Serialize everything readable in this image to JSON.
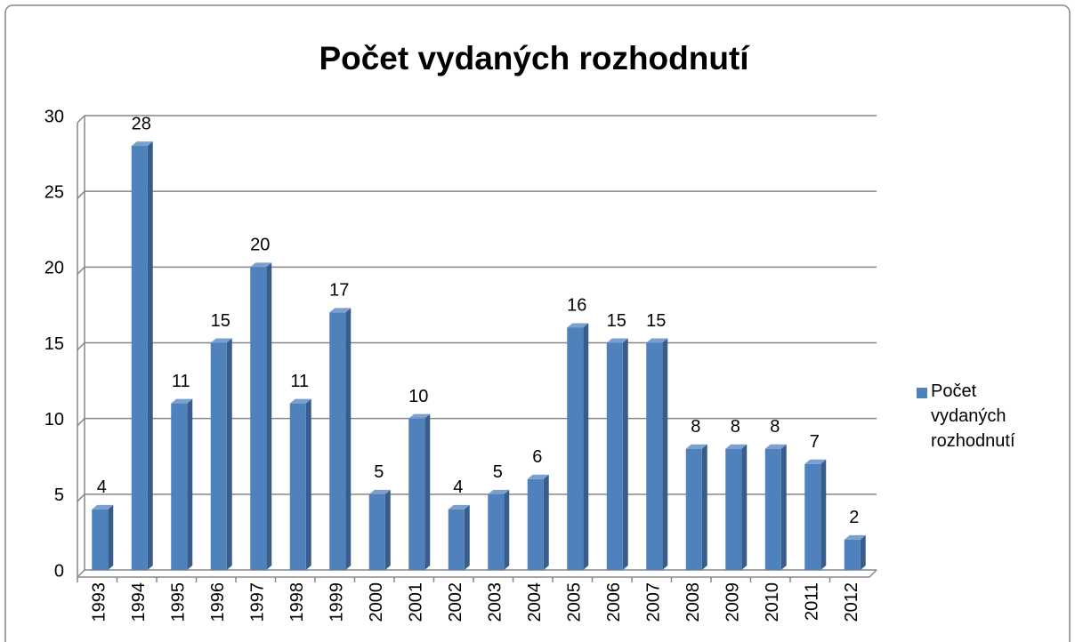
{
  "chart_data": {
    "type": "bar",
    "title": "Počet vydaných rozhodnutí",
    "categories": [
      "1993",
      "1994",
      "1995",
      "1996",
      "1997",
      "1998",
      "1999",
      "2000",
      "2001",
      "2002",
      "2003",
      "2004",
      "2005",
      "2006",
      "2007",
      "2008",
      "2009",
      "2010",
      "2011",
      "2012"
    ],
    "series": [
      {
        "name": "Počet vydaných rozhodnutí",
        "color": "#4f81bd",
        "values": [
          4,
          28,
          11,
          15,
          20,
          11,
          17,
          5,
          10,
          4,
          5,
          6,
          16,
          15,
          15,
          8,
          8,
          8,
          7,
          2
        ]
      }
    ],
    "ylim": [
      0,
      30
    ],
    "yticks": [
      0,
      5,
      10,
      15,
      20,
      25,
      30
    ],
    "grid": true,
    "legend": "right"
  }
}
